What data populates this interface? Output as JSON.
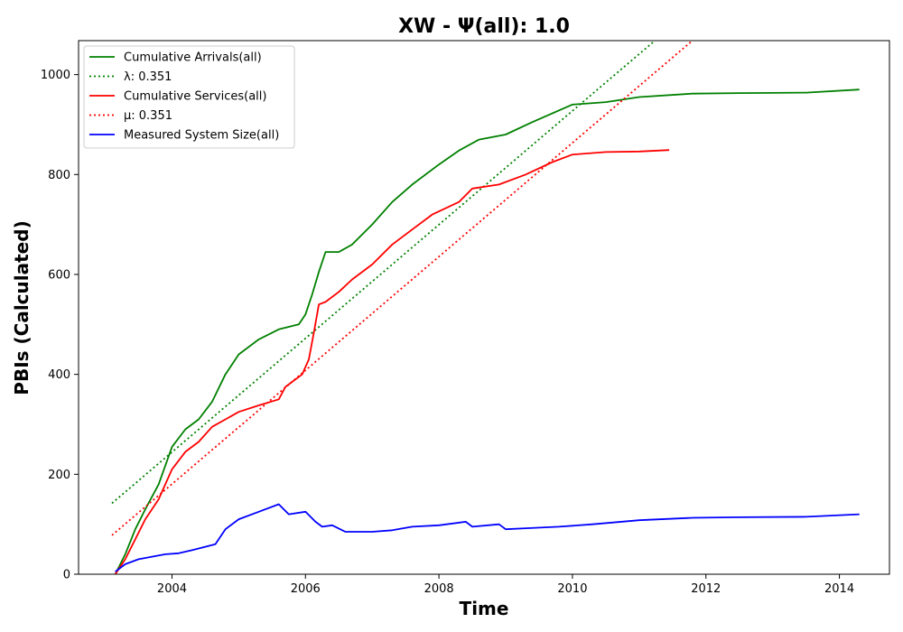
{
  "chart_data": {
    "type": "line",
    "title": "XW -  Ψ(all): 1.0",
    "xlabel": "Time",
    "ylabel": "PBIs (Calculated)",
    "xlim": [
      2002.6,
      2014.75
    ],
    "ylim": [
      0,
      1068
    ],
    "xticks": [
      2004,
      2006,
      2008,
      2010,
      2012,
      2014
    ],
    "yticks": [
      0,
      200,
      400,
      600,
      800,
      1000
    ],
    "legend_position": "upper-left",
    "series": [
      {
        "name": "Cumulative Arrivals(all)",
        "legend_label": "Cumulative Arrivals(all)",
        "color": "#008000",
        "style": "solid",
        "x": [
          2003.15,
          2003.3,
          2003.45,
          2003.6,
          2003.8,
          2004.0,
          2004.2,
          2004.4,
          2004.6,
          2004.8,
          2005.0,
          2005.3,
          2005.6,
          2005.9,
          2006.0,
          2006.1,
          2006.2,
          2006.3,
          2006.5,
          2006.7,
          2007.0,
          2007.3,
          2007.6,
          2008.0,
          2008.3,
          2008.6,
          2009.0,
          2009.4,
          2010.0,
          2010.5,
          2011.0,
          2011.8,
          2012.5,
          2013.5,
          2014.3
        ],
        "y": [
          0,
          40,
          90,
          130,
          180,
          255,
          290,
          310,
          345,
          400,
          440,
          470,
          490,
          500,
          520,
          560,
          605,
          645,
          645,
          660,
          700,
          745,
          780,
          820,
          848,
          870,
          880,
          905,
          940,
          945,
          955,
          962,
          963,
          964,
          970
        ]
      },
      {
        "name": "λ",
        "legend_label": "λ: 0.351",
        "color": "#008000",
        "style": "dotted",
        "x": [
          2003.1,
          2013.0
        ],
        "y": [
          142,
          1269
        ]
      },
      {
        "name": "Cumulative Services(all)",
        "legend_label": "Cumulative Services(all)",
        "color": "#ff0000",
        "style": "solid",
        "x": [
          2003.15,
          2003.3,
          2003.45,
          2003.6,
          2003.8,
          2004.0,
          2004.2,
          2004.4,
          2004.6,
          2004.8,
          2005.0,
          2005.3,
          2005.6,
          2005.7,
          2005.95,
          2006.05,
          2006.12,
          2006.2,
          2006.3,
          2006.5,
          2006.7,
          2007.0,
          2007.3,
          2007.6,
          2007.9,
          2008.3,
          2008.5,
          2008.9,
          2009.3,
          2009.7,
          2010.0,
          2010.5,
          2011.0,
          2011.45
        ],
        "y": [
          0,
          30,
          70,
          110,
          150,
          210,
          245,
          265,
          295,
          310,
          325,
          338,
          350,
          375,
          400,
          430,
          480,
          540,
          545,
          565,
          590,
          620,
          660,
          690,
          720,
          745,
          772,
          780,
          800,
          825,
          840,
          845,
          846,
          849
        ]
      },
      {
        "name": "μ",
        "legend_label": "μ: 0.351",
        "color": "#ff0000",
        "style": "dotted",
        "x": [
          2003.1,
          2013.0
        ],
        "y": [
          78,
          1205
        ]
      },
      {
        "name": "Measured System Size(all)",
        "legend_label": "Measured System Size(all)",
        "color": "#0000ff",
        "style": "solid",
        "x": [
          2003.15,
          2003.3,
          2003.5,
          2003.7,
          2003.9,
          2004.1,
          2004.3,
          2004.5,
          2004.65,
          2004.8,
          2005.0,
          2005.3,
          2005.6,
          2005.75,
          2006.0,
          2006.15,
          2006.25,
          2006.4,
          2006.6,
          2007.0,
          2007.3,
          2007.6,
          2008.0,
          2008.4,
          2008.5,
          2008.9,
          2009.0,
          2009.3,
          2009.8,
          2010.3,
          2011.0,
          2011.8,
          2012.5,
          2013.5,
          2014.3
        ],
        "y": [
          5,
          20,
          30,
          35,
          40,
          42,
          48,
          55,
          60,
          90,
          110,
          125,
          140,
          120,
          125,
          105,
          95,
          98,
          85,
          85,
          88,
          95,
          98,
          105,
          95,
          100,
          90,
          92,
          95,
          100,
          108,
          113,
          114,
          115,
          120
        ]
      }
    ]
  }
}
